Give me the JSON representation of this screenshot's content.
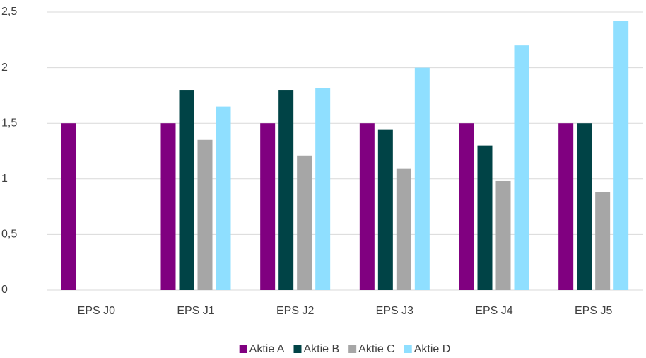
{
  "chart_data": {
    "type": "bar",
    "categories": [
      "EPS J0",
      "EPS J1",
      "EPS J2",
      "EPS J3",
      "EPS J4",
      "EPS J5"
    ],
    "series": [
      {
        "name": "Aktie A",
        "color": "#800080",
        "values": [
          1.5,
          1.5,
          1.5,
          1.5,
          1.5,
          1.5
        ]
      },
      {
        "name": "Aktie B",
        "color": "#004346",
        "values": [
          null,
          1.8,
          1.8,
          1.44,
          1.3,
          1.5
        ]
      },
      {
        "name": "Aktie C",
        "color": "#a6a6a6",
        "values": [
          null,
          1.35,
          1.21,
          1.09,
          0.98,
          0.88
        ]
      },
      {
        "name": "Aktie D",
        "color": "#8fdfff",
        "values": [
          null,
          1.65,
          1.815,
          2.0,
          2.2,
          2.42
        ]
      }
    ],
    "ylim": [
      0,
      2.5
    ],
    "yticks": [
      0,
      {
        "value": 0.5,
        "label": "0,5"
      },
      1,
      {
        "value": 1.5,
        "label": "1,5"
      },
      2,
      {
        "value": 2.5,
        "label": "2,5"
      }
    ],
    "grid": true,
    "legend": "bottom"
  }
}
